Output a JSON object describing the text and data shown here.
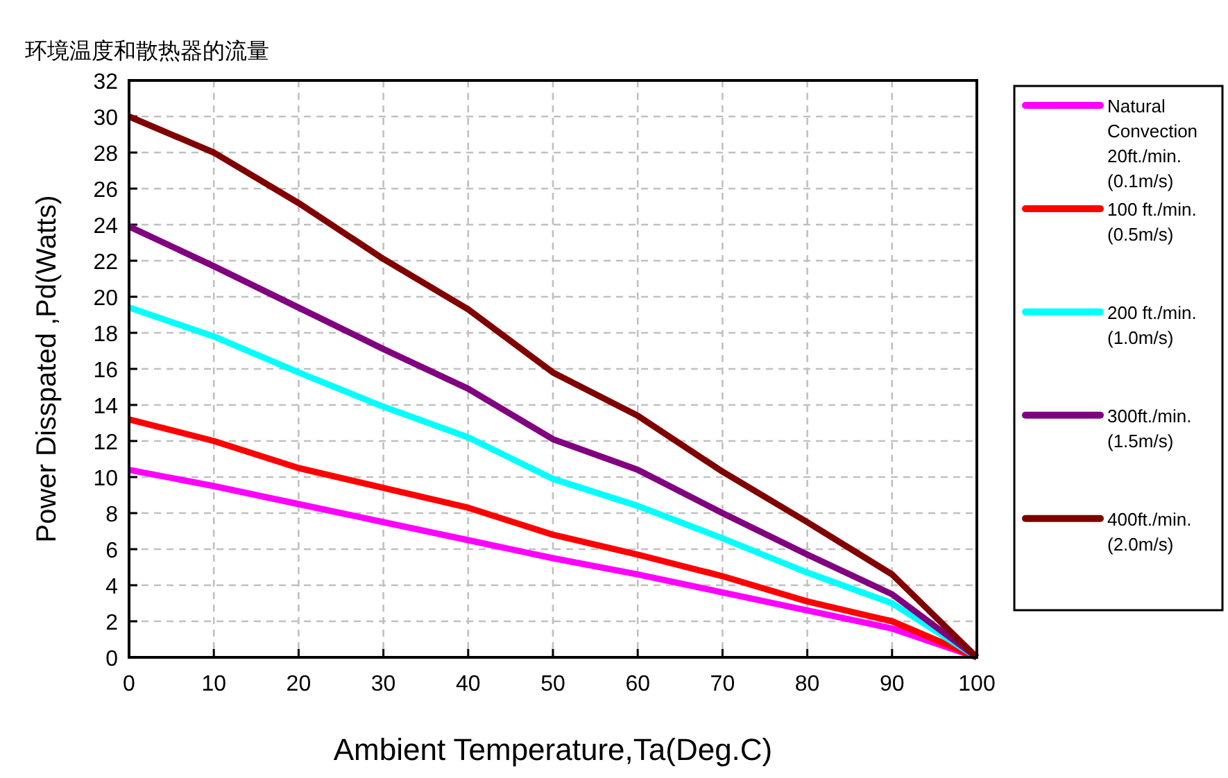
{
  "chart_data": {
    "type": "line",
    "title": "环境温度和散热器的流量",
    "xlabel": "Ambient Temperature,Ta(Deg.C)",
    "ylabel": "Power Disspated ,Pd(Watts)",
    "x": [
      0,
      10,
      20,
      30,
      40,
      50,
      60,
      70,
      80,
      90,
      100
    ],
    "xlim": [
      0,
      100
    ],
    "xticks": [
      0,
      10,
      20,
      30,
      40,
      50,
      60,
      70,
      80,
      90,
      100
    ],
    "ylim": [
      0,
      32
    ],
    "yticks": [
      0,
      2,
      4,
      6,
      8,
      10,
      12,
      14,
      16,
      18,
      20,
      22,
      24,
      26,
      28,
      30,
      32
    ],
    "grid": true,
    "legend": "right",
    "marker": "none",
    "line_style": "solid",
    "series": [
      {
        "name": "Natural Convection 20ft./min. (0.1m/s)",
        "color": "#ff00ff",
        "values": [
          10.4,
          9.5,
          8.5,
          7.5,
          6.5,
          5.5,
          4.6,
          3.6,
          2.6,
          1.6,
          0
        ]
      },
      {
        "name": "100 ft./min. (0.5m/s)",
        "color": "#ff0000",
        "values": [
          13.2,
          12.0,
          10.5,
          9.4,
          8.3,
          6.8,
          5.7,
          4.5,
          3.1,
          2.0,
          0
        ]
      },
      {
        "name": "200 ft./min. (1.0m/s)",
        "color": "#00ffff",
        "values": [
          19.4,
          17.8,
          15.8,
          13.9,
          12.2,
          9.9,
          8.4,
          6.6,
          4.7,
          3.0,
          0
        ]
      },
      {
        "name": "300ft./min. (1.5m/s)",
        "color": "#800080",
        "values": [
          23.9,
          21.7,
          19.4,
          17.1,
          14.9,
          12.1,
          10.4,
          8.0,
          5.7,
          3.5,
          0
        ]
      },
      {
        "name": "400ft./min. (2.0m/s)",
        "color": "#800000",
        "values": [
          30.0,
          28.0,
          25.2,
          22.1,
          19.3,
          15.8,
          13.4,
          10.3,
          7.5,
          4.6,
          0
        ]
      }
    ]
  }
}
